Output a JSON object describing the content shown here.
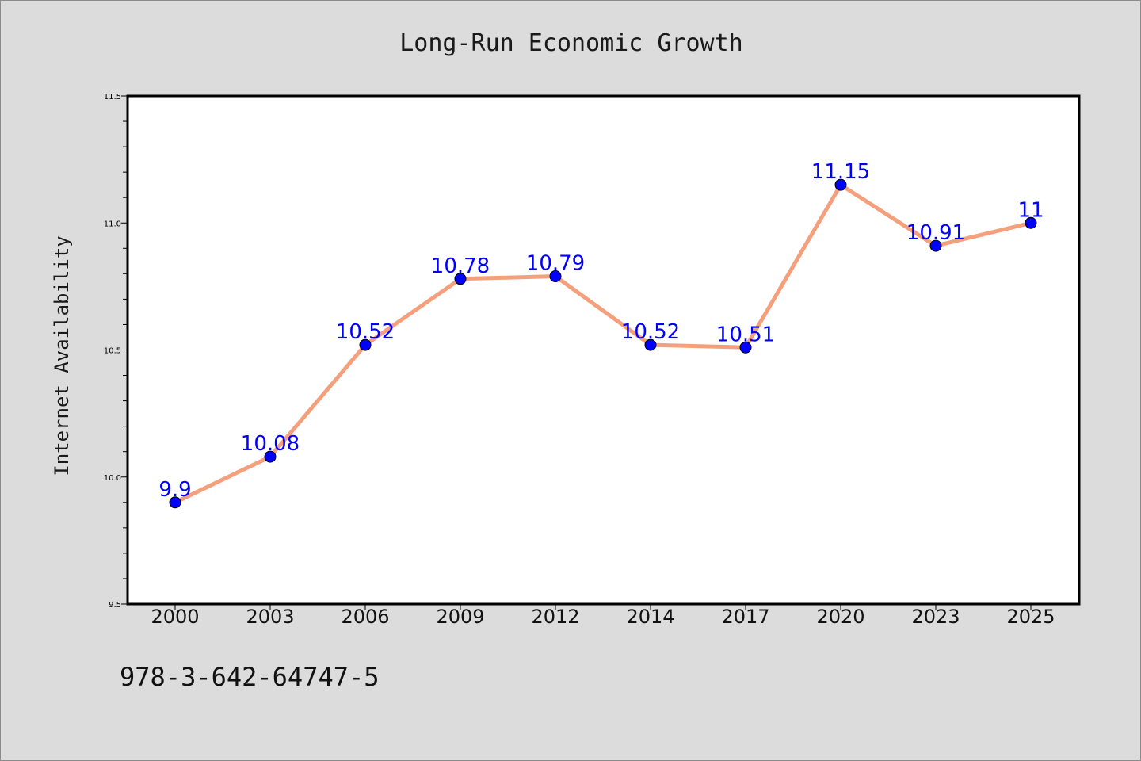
{
  "chart_data": {
    "type": "line",
    "title": "Long-Run Economic Growth",
    "xlabel": "",
    "ylabel": "Internet Availability",
    "categories": [
      "2000",
      "2003",
      "2006",
      "2009",
      "2012",
      "2014",
      "2017",
      "2020",
      "2023",
      "2025"
    ],
    "series": [
      {
        "values": [
          9.9,
          10.08,
          10.52,
          10.78,
          10.79,
          10.52,
          10.51,
          11.15,
          10.91,
          11
        ],
        "point_labels": [
          "9.9",
          "10.08",
          "10.52",
          "10.78",
          "10.79",
          "10.52",
          "10.51",
          "11.15",
          "10.91",
          "11"
        ],
        "line_color": "#f4a07c",
        "marker_color": "#0000ff"
      }
    ],
    "ylim": [
      9.5,
      11.5
    ],
    "yticks": [
      "9.5",
      "10.0",
      "10.5",
      "11.0",
      "11.5"
    ],
    "grid": false,
    "legend": "none"
  },
  "footer_text": "978-3-642-64747-5",
  "colors": {
    "background": "#dcdcdc",
    "plot_background": "#ffffff",
    "axes": "#000000"
  }
}
